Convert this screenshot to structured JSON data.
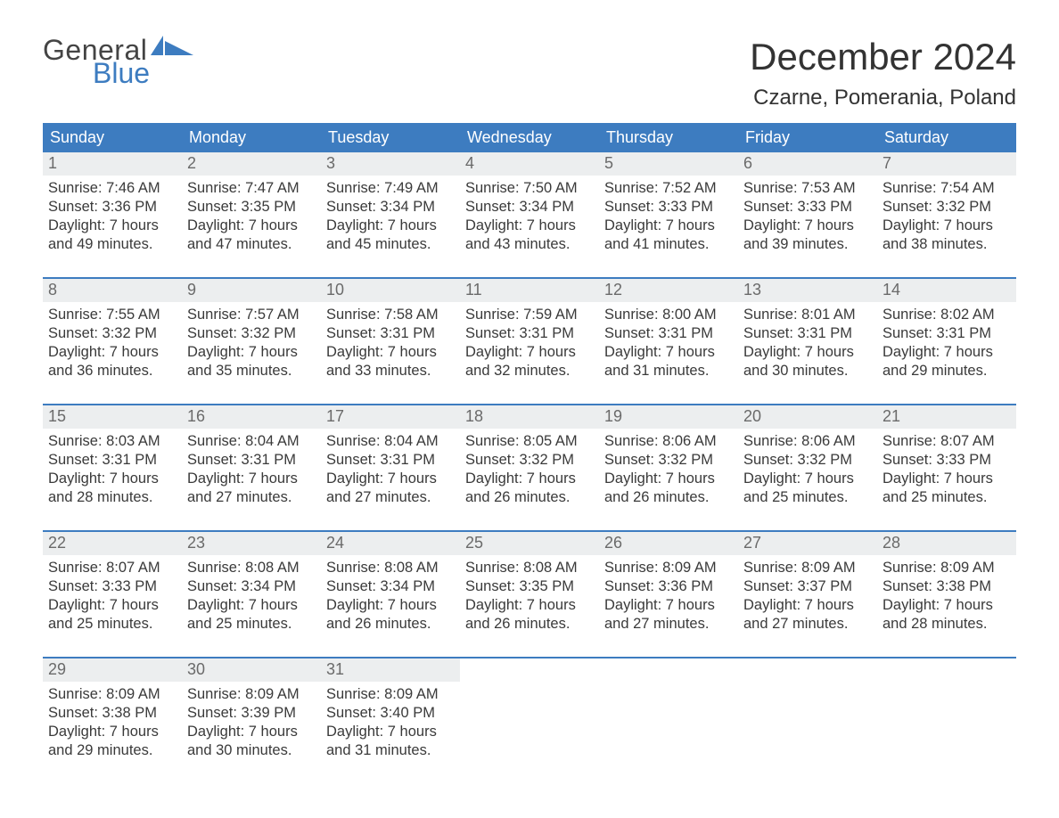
{
  "colors": {
    "brand_blue": "#3d7cc0",
    "header_bg": "#3d7cc0",
    "header_text": "#ffffff",
    "shade_bg": "#eceeef",
    "row_border": "#3d7cc0",
    "body_text": "#3a3a3a",
    "muted_text": "#6a6a6a",
    "page_bg": "#ffffff"
  },
  "typography": {
    "title_fontsize_pt": 32,
    "location_fontsize_pt": 18,
    "weekday_fontsize_pt": 14,
    "body_fontsize_pt": 12
  },
  "logo": {
    "line1": "General",
    "line2": "Blue"
  },
  "title": "December 2024",
  "location": "Czarne, Pomerania, Poland",
  "weekdays": [
    "Sunday",
    "Monday",
    "Tuesday",
    "Wednesday",
    "Thursday",
    "Friday",
    "Saturday"
  ],
  "calendar": {
    "type": "table",
    "columns": 7,
    "rows": 5,
    "start_weekday_index": 0,
    "days": [
      {
        "n": "1",
        "sunrise": "7:46 AM",
        "sunset": "3:36 PM",
        "daylight_l1": "7 hours",
        "daylight_l2": "and 49 minutes."
      },
      {
        "n": "2",
        "sunrise": "7:47 AM",
        "sunset": "3:35 PM",
        "daylight_l1": "7 hours",
        "daylight_l2": "and 47 minutes."
      },
      {
        "n": "3",
        "sunrise": "7:49 AM",
        "sunset": "3:34 PM",
        "daylight_l1": "7 hours",
        "daylight_l2": "and 45 minutes."
      },
      {
        "n": "4",
        "sunrise": "7:50 AM",
        "sunset": "3:34 PM",
        "daylight_l1": "7 hours",
        "daylight_l2": "and 43 minutes."
      },
      {
        "n": "5",
        "sunrise": "7:52 AM",
        "sunset": "3:33 PM",
        "daylight_l1": "7 hours",
        "daylight_l2": "and 41 minutes."
      },
      {
        "n": "6",
        "sunrise": "7:53 AM",
        "sunset": "3:33 PM",
        "daylight_l1": "7 hours",
        "daylight_l2": "and 39 minutes."
      },
      {
        "n": "7",
        "sunrise": "7:54 AM",
        "sunset": "3:32 PM",
        "daylight_l1": "7 hours",
        "daylight_l2": "and 38 minutes."
      },
      {
        "n": "8",
        "sunrise": "7:55 AM",
        "sunset": "3:32 PM",
        "daylight_l1": "7 hours",
        "daylight_l2": "and 36 minutes."
      },
      {
        "n": "9",
        "sunrise": "7:57 AM",
        "sunset": "3:32 PM",
        "daylight_l1": "7 hours",
        "daylight_l2": "and 35 minutes."
      },
      {
        "n": "10",
        "sunrise": "7:58 AM",
        "sunset": "3:31 PM",
        "daylight_l1": "7 hours",
        "daylight_l2": "and 33 minutes."
      },
      {
        "n": "11",
        "sunrise": "7:59 AM",
        "sunset": "3:31 PM",
        "daylight_l1": "7 hours",
        "daylight_l2": "and 32 minutes."
      },
      {
        "n": "12",
        "sunrise": "8:00 AM",
        "sunset": "3:31 PM",
        "daylight_l1": "7 hours",
        "daylight_l2": "and 31 minutes."
      },
      {
        "n": "13",
        "sunrise": "8:01 AM",
        "sunset": "3:31 PM",
        "daylight_l1": "7 hours",
        "daylight_l2": "and 30 minutes."
      },
      {
        "n": "14",
        "sunrise": "8:02 AM",
        "sunset": "3:31 PM",
        "daylight_l1": "7 hours",
        "daylight_l2": "and 29 minutes."
      },
      {
        "n": "15",
        "sunrise": "8:03 AM",
        "sunset": "3:31 PM",
        "daylight_l1": "7 hours",
        "daylight_l2": "and 28 minutes."
      },
      {
        "n": "16",
        "sunrise": "8:04 AM",
        "sunset": "3:31 PM",
        "daylight_l1": "7 hours",
        "daylight_l2": "and 27 minutes."
      },
      {
        "n": "17",
        "sunrise": "8:04 AM",
        "sunset": "3:31 PM",
        "daylight_l1": "7 hours",
        "daylight_l2": "and 27 minutes."
      },
      {
        "n": "18",
        "sunrise": "8:05 AM",
        "sunset": "3:32 PM",
        "daylight_l1": "7 hours",
        "daylight_l2": "and 26 minutes."
      },
      {
        "n": "19",
        "sunrise": "8:06 AM",
        "sunset": "3:32 PM",
        "daylight_l1": "7 hours",
        "daylight_l2": "and 26 minutes."
      },
      {
        "n": "20",
        "sunrise": "8:06 AM",
        "sunset": "3:32 PM",
        "daylight_l1": "7 hours",
        "daylight_l2": "and 25 minutes."
      },
      {
        "n": "21",
        "sunrise": "8:07 AM",
        "sunset": "3:33 PM",
        "daylight_l1": "7 hours",
        "daylight_l2": "and 25 minutes."
      },
      {
        "n": "22",
        "sunrise": "8:07 AM",
        "sunset": "3:33 PM",
        "daylight_l1": "7 hours",
        "daylight_l2": "and 25 minutes."
      },
      {
        "n": "23",
        "sunrise": "8:08 AM",
        "sunset": "3:34 PM",
        "daylight_l1": "7 hours",
        "daylight_l2": "and 25 minutes."
      },
      {
        "n": "24",
        "sunrise": "8:08 AM",
        "sunset": "3:34 PM",
        "daylight_l1": "7 hours",
        "daylight_l2": "and 26 minutes."
      },
      {
        "n": "25",
        "sunrise": "8:08 AM",
        "sunset": "3:35 PM",
        "daylight_l1": "7 hours",
        "daylight_l2": "and 26 minutes."
      },
      {
        "n": "26",
        "sunrise": "8:09 AM",
        "sunset": "3:36 PM",
        "daylight_l1": "7 hours",
        "daylight_l2": "and 27 minutes."
      },
      {
        "n": "27",
        "sunrise": "8:09 AM",
        "sunset": "3:37 PM",
        "daylight_l1": "7 hours",
        "daylight_l2": "and 27 minutes."
      },
      {
        "n": "28",
        "sunrise": "8:09 AM",
        "sunset": "3:38 PM",
        "daylight_l1": "7 hours",
        "daylight_l2": "and 28 minutes."
      },
      {
        "n": "29",
        "sunrise": "8:09 AM",
        "sunset": "3:38 PM",
        "daylight_l1": "7 hours",
        "daylight_l2": "and 29 minutes."
      },
      {
        "n": "30",
        "sunrise": "8:09 AM",
        "sunset": "3:39 PM",
        "daylight_l1": "7 hours",
        "daylight_l2": "and 30 minutes."
      },
      {
        "n": "31",
        "sunrise": "8:09 AM",
        "sunset": "3:40 PM",
        "daylight_l1": "7 hours",
        "daylight_l2": "and 31 minutes."
      }
    ],
    "labels": {
      "sunrise_prefix": "Sunrise: ",
      "sunset_prefix": "Sunset: ",
      "daylight_prefix": "Daylight: "
    }
  }
}
